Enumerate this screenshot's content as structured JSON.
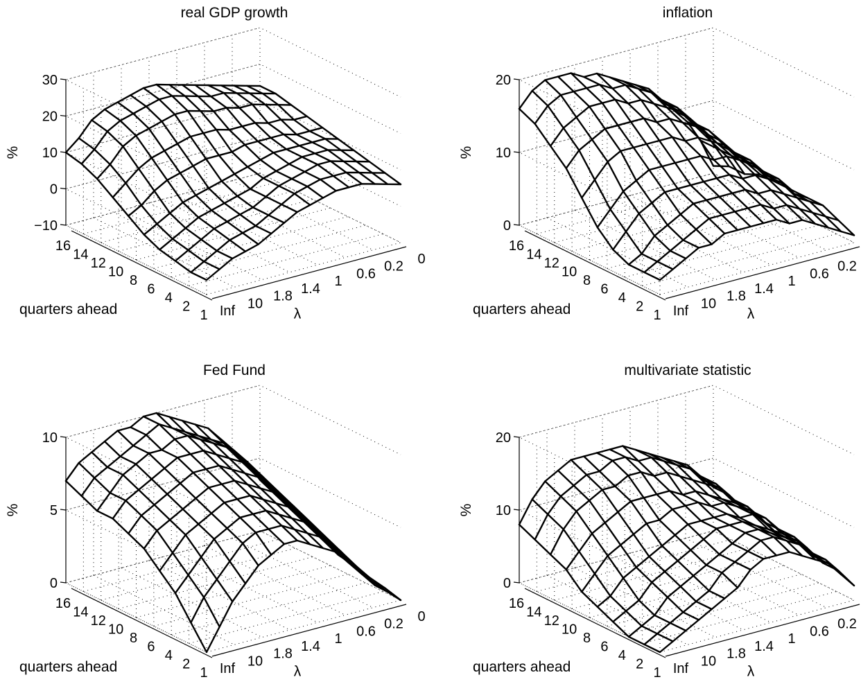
{
  "chart_data": [
    {
      "type": "surface",
      "title": "real GDP growth",
      "xlabel": "quarters ahead",
      "ylabel": "λ",
      "zlabel": "%",
      "x_ticks": [
        "16",
        "14",
        "12",
        "10",
        "8",
        "6",
        "4",
        "2",
        "1"
      ],
      "y_ticks": [
        "Inf",
        "10",
        "1.8",
        "1.4",
        "1",
        "0.6",
        "0.2",
        "0"
      ],
      "z_ticks": [
        "30",
        "20",
        "10",
        "0",
        "−10"
      ],
      "zlim": [
        -10,
        30
      ],
      "grid": true,
      "z": [
        [
          10,
          13,
          17,
          19,
          20,
          21,
          22,
          22,
          21,
          20,
          19,
          18,
          17,
          16,
          15,
          14
        ],
        [
          9,
          12,
          16,
          18,
          19,
          20,
          21,
          21,
          20,
          19,
          18,
          18,
          17,
          16,
          15,
          14
        ],
        [
          7,
          10,
          14,
          16,
          17,
          18,
          19,
          19,
          18,
          17,
          17,
          16,
          16,
          15,
          14,
          13
        ],
        [
          4,
          7,
          10,
          12,
          13,
          14,
          15,
          15,
          15,
          14,
          14,
          14,
          13,
          13,
          12,
          12
        ],
        [
          1,
          3,
          6,
          8,
          9,
          10,
          11,
          11,
          11,
          12,
          12,
          12,
          12,
          11,
          11,
          11
        ],
        [
          -2,
          0,
          2,
          4,
          5,
          6,
          7,
          8,
          9,
          10,
          11,
          11,
          11,
          11,
          11,
          10
        ],
        [
          -4,
          -2,
          0,
          2,
          3,
          4,
          5,
          6,
          8,
          9,
          10,
          11,
          11,
          11,
          10,
          9
        ],
        [
          -5,
          -3,
          -1,
          1,
          2,
          3,
          4,
          6,
          8,
          9,
          10,
          11,
          11,
          10,
          9,
          8
        ],
        [
          -6,
          -4,
          -2,
          0,
          1,
          2,
          4,
          6,
          8,
          9,
          10,
          10,
          10,
          9,
          8,
          7
        ],
        [
          -6,
          -4,
          -2,
          -1,
          0,
          2,
          4,
          6,
          7,
          8,
          9,
          9,
          9,
          8,
          7,
          6
        ]
      ]
    },
    {
      "type": "surface",
      "title": "inflation",
      "xlabel": "quarters ahead",
      "ylabel": "λ",
      "zlabel": "%",
      "x_ticks": [
        "16",
        "14",
        "12",
        "10",
        "8",
        "6",
        "4",
        "2",
        "1"
      ],
      "y_ticks": [
        "Inf",
        "10",
        "1.8",
        "1.4",
        "1",
        "0.6",
        "0.2",
        "0"
      ],
      "z_ticks": [
        "20",
        "10",
        "0"
      ],
      "zlim": [
        0,
        20
      ],
      "grid": true,
      "z": [
        [
          16,
          18,
          19,
          19,
          19,
          18,
          18,
          17,
          16,
          15,
          14,
          12,
          10,
          8,
          5,
          1
        ],
        [
          15,
          17,
          18,
          18,
          18,
          18,
          17,
          17,
          16,
          15,
          13,
          12,
          10,
          8,
          5,
          2
        ],
        [
          13,
          15,
          16,
          17,
          17,
          17,
          16,
          16,
          15,
          14,
          13,
          11,
          9,
          7,
          5,
          2
        ],
        [
          11,
          13,
          14,
          15,
          15,
          15,
          15,
          14,
          14,
          13,
          12,
          11,
          9,
          7,
          5,
          3
        ],
        [
          8,
          10,
          12,
          13,
          13,
          13,
          13,
          13,
          12,
          12,
          11,
          10,
          8,
          7,
          5,
          3
        ],
        [
          5,
          7,
          9,
          10,
          11,
          11,
          11,
          11,
          11,
          10,
          10,
          9,
          8,
          6,
          5,
          3
        ],
        [
          3,
          5,
          7,
          8,
          9,
          9,
          9,
          9,
          9,
          9,
          8,
          8,
          7,
          6,
          4,
          3
        ],
        [
          2,
          3,
          5,
          6,
          7,
          8,
          8,
          8,
          8,
          8,
          7,
          7,
          6,
          5,
          4,
          3
        ],
        [
          2,
          3,
          4,
          5,
          6,
          7,
          7,
          7,
          7,
          7,
          6,
          6,
          5,
          4,
          3,
          2
        ],
        [
          2,
          3,
          4,
          5,
          5,
          6,
          6,
          6,
          6,
          6,
          5,
          5,
          4,
          3,
          2,
          1
        ]
      ]
    },
    {
      "type": "surface",
      "title": "Fed Fund",
      "xlabel": "quarters ahead",
      "ylabel": "λ",
      "zlabel": "%",
      "x_ticks": [
        "16",
        "14",
        "12",
        "10",
        "8",
        "6",
        "4",
        "2",
        "1"
      ],
      "y_ticks": [
        "Inf",
        "10",
        "1.8",
        "1.4",
        "1",
        "0.6",
        "0.2",
        "0"
      ],
      "z_ticks": [
        "10",
        "5",
        "0"
      ],
      "zlim": [
        0,
        10
      ],
      "grid": true,
      "z": [
        [
          7,
          8,
          8.5,
          9,
          9.5,
          9.5,
          10,
          10,
          9.5,
          9,
          8.5,
          8,
          7,
          6,
          5,
          3.5
        ],
        [
          6.5,
          7.5,
          8,
          8.5,
          9,
          9.5,
          10,
          9.5,
          9,
          8.5,
          8,
          7.5,
          6.5,
          5.5,
          4.5,
          3
        ],
        [
          6,
          7,
          8,
          8.5,
          9,
          9,
          9.5,
          9.5,
          9,
          8.5,
          8,
          7,
          6,
          5,
          4,
          2.5
        ],
        [
          6,
          7,
          7.5,
          8,
          8.5,
          9,
          9,
          9,
          8.5,
          8,
          7.5,
          6.5,
          5.5,
          4.5,
          3.5,
          2
        ],
        [
          5.5,
          6.5,
          7,
          7.5,
          8,
          8.5,
          8.5,
          8.5,
          8,
          7.5,
          7,
          6,
          5,
          4,
          3,
          1.5
        ],
        [
          5,
          6,
          6.5,
          7,
          7.5,
          8,
          8,
          8,
          7.5,
          7,
          6.5,
          5.5,
          4.5,
          3.5,
          2.5,
          1
        ],
        [
          4,
          5,
          6,
          6.5,
          7,
          7.5,
          7.5,
          7.5,
          7,
          6.5,
          6,
          5,
          4,
          3,
          2,
          0.8
        ],
        [
          3,
          4,
          5,
          6,
          6.5,
          7,
          7,
          7,
          6.5,
          6,
          5.5,
          4.5,
          3.5,
          2.5,
          1.5,
          0.5
        ],
        [
          1.5,
          3,
          4,
          5,
          6,
          6.5,
          6.5,
          6.5,
          6,
          5.5,
          5,
          4,
          3,
          2,
          1,
          0.3
        ],
        [
          0,
          1.5,
          3,
          4,
          5,
          5.5,
          6,
          6,
          5.5,
          5,
          4.5,
          3.5,
          2.5,
          1.5,
          0.8,
          0
        ]
      ]
    },
    {
      "type": "surface",
      "title": "multivariate statistic",
      "xlabel": "quarters ahead",
      "ylabel": "λ",
      "zlabel": "%",
      "x_ticks": [
        "16",
        "14",
        "12",
        "10",
        "8",
        "6",
        "4",
        "2",
        "1"
      ],
      "y_ticks": [
        "Inf",
        "10",
        "1.8",
        "1.4",
        "1",
        "0.6",
        "0.2",
        "0"
      ],
      "z_ticks": [
        "20",
        "10",
        "0"
      ],
      "zlim": [
        0,
        20
      ],
      "grid": true,
      "z": [
        [
          8,
          11,
          13,
          14,
          15,
          15,
          15,
          15,
          15,
          14,
          13,
          12,
          11,
          10,
          8,
          6
        ],
        [
          7,
          10,
          12,
          13,
          14,
          14,
          15,
          15,
          14,
          14,
          13,
          12,
          11,
          9,
          8,
          6
        ],
        [
          6,
          9,
          11,
          12,
          13,
          13,
          14,
          14,
          13,
          13,
          12,
          11,
          10,
          9,
          7,
          5
        ],
        [
          5,
          7,
          9,
          10,
          11,
          12,
          12,
          12,
          12,
          11,
          11,
          10,
          9,
          8,
          7,
          5
        ],
        [
          3,
          5,
          7,
          8,
          9,
          10,
          10,
          11,
          11,
          11,
          10,
          10,
          9,
          8,
          6,
          4
        ],
        [
          2,
          3,
          5,
          6,
          7,
          8,
          9,
          10,
          10,
          10,
          10,
          9,
          9,
          8,
          6,
          4
        ],
        [
          1,
          2,
          3,
          5,
          6,
          7,
          8,
          9,
          10,
          10,
          10,
          9,
          8,
          7,
          6,
          4
        ],
        [
          0,
          1,
          2,
          4,
          5,
          6,
          7,
          8,
          9,
          10,
          10,
          9,
          8,
          7,
          5,
          3
        ],
        [
          0,
          1,
          2,
          3,
          4,
          5,
          7,
          8,
          9,
          10,
          10,
          9,
          8,
          6,
          5,
          3
        ],
        [
          0,
          1,
          2,
          3,
          4,
          5,
          6,
          8,
          9,
          9,
          9,
          8,
          7,
          6,
          4,
          2
        ]
      ]
    }
  ]
}
